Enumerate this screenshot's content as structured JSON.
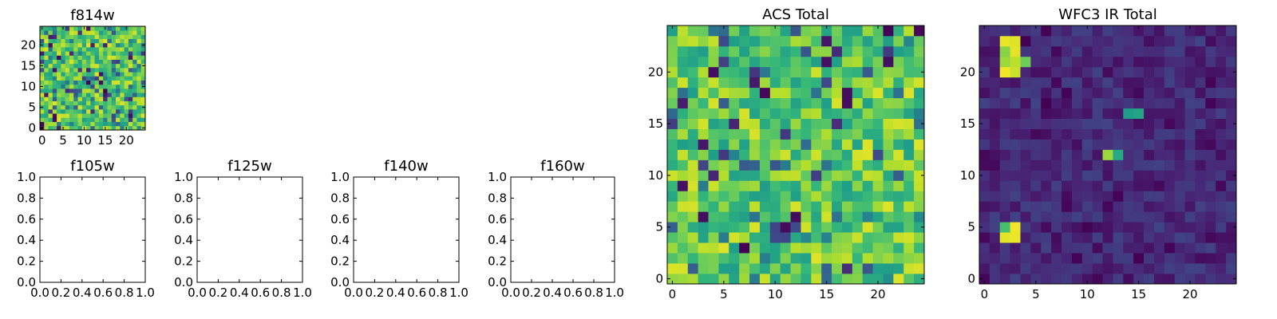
{
  "chart_data": [
    {
      "id": "f814w",
      "type": "heatmap",
      "title": "f814w",
      "grid_size": 25,
      "xlim": [
        -0.5,
        24.5
      ],
      "ylim": [
        -0.5,
        24.5
      ],
      "xticks": [
        0,
        5,
        10,
        15,
        20
      ],
      "yticks": [
        0,
        5,
        10,
        15,
        20
      ],
      "xticklabels": [
        "0",
        "5",
        "10",
        "15",
        "20"
      ],
      "yticklabels": [
        "0",
        "5",
        "10",
        "15",
        "20"
      ],
      "colormap": "viridis",
      "seed": 814,
      "base_low": 0.55,
      "base_high": 0.95,
      "dip_prob": 0.16,
      "dip_low": 0.0,
      "dip_high": 0.5,
      "hotspots": []
    },
    {
      "id": "f105w",
      "type": "heatmap",
      "title": "f105w",
      "empty": true,
      "xlim": [
        0,
        1
      ],
      "ylim": [
        0,
        1
      ],
      "xticklabels": [
        "0.0",
        "0.2",
        "0.4",
        "0.6",
        "0.8",
        "1.0"
      ],
      "yticklabels": [
        "0.0",
        "0.2",
        "0.4",
        "0.6",
        "0.8",
        "1.0"
      ]
    },
    {
      "id": "f125w",
      "type": "heatmap",
      "title": "f125w",
      "empty": true,
      "xlim": [
        0,
        1
      ],
      "ylim": [
        0,
        1
      ],
      "xticklabels": [
        "0.0",
        "0.2",
        "0.4",
        "0.6",
        "0.8",
        "1.0"
      ],
      "yticklabels": [
        "0.0",
        "0.2",
        "0.4",
        "0.6",
        "0.8",
        "1.0"
      ]
    },
    {
      "id": "f140w",
      "type": "heatmap",
      "title": "f140w",
      "empty": true,
      "xlim": [
        0,
        1
      ],
      "ylim": [
        0,
        1
      ],
      "xticklabels": [
        "0.0",
        "0.2",
        "0.4",
        "0.6",
        "0.8",
        "1.0"
      ],
      "yticklabels": [
        "0.0",
        "0.2",
        "0.4",
        "0.6",
        "0.8",
        "1.0"
      ]
    },
    {
      "id": "f160w",
      "type": "heatmap",
      "title": "f160w",
      "empty": true,
      "xlim": [
        0,
        1
      ],
      "ylim": [
        0,
        1
      ],
      "xticklabels": [
        "0.0",
        "0.2",
        "0.4",
        "0.6",
        "0.8",
        "1.0"
      ],
      "yticklabels": [
        "0.0",
        "0.2",
        "0.4",
        "0.6",
        "0.8",
        "1.0"
      ]
    },
    {
      "id": "acs_total",
      "type": "heatmap",
      "title": "ACS Total",
      "grid_size": 25,
      "xlim": [
        -0.5,
        24.5
      ],
      "ylim": [
        -0.5,
        24.5
      ],
      "xticks": [
        0,
        5,
        10,
        15,
        20
      ],
      "yticks": [
        0,
        5,
        10,
        15,
        20
      ],
      "xticklabels": [
        "0",
        "5",
        "10",
        "15",
        "20"
      ],
      "yticklabels": [
        "0",
        "5",
        "10",
        "15",
        "20"
      ],
      "colormap": "viridis",
      "seed": 1234,
      "base_low": 0.55,
      "base_high": 0.95,
      "dip_prob": 0.12,
      "dip_low": 0.0,
      "dip_high": 0.5,
      "hotspots": []
    },
    {
      "id": "wfc3_ir_total",
      "type": "heatmap",
      "title": "WFC3 IR Total",
      "grid_size": 25,
      "xlim": [
        -0.5,
        24.5
      ],
      "ylim": [
        -0.5,
        24.5
      ],
      "xticks": [
        0,
        5,
        10,
        15,
        20
      ],
      "yticks": [
        0,
        5,
        10,
        15,
        20
      ],
      "xticklabels": [
        "0",
        "5",
        "10",
        "15",
        "20"
      ],
      "yticklabels": [
        "0",
        "5",
        "10",
        "15",
        "20"
      ],
      "colormap": "viridis",
      "seed": 4242,
      "base_low": 0.04,
      "base_high": 0.2,
      "dip_prob": 0.06,
      "dip_low": 0.0,
      "dip_high": 0.04,
      "hotspots": [
        {
          "row": 23,
          "col": 2,
          "value": 0.97
        },
        {
          "row": 23,
          "col": 3,
          "value": 0.95
        },
        {
          "row": 22,
          "col": 2,
          "value": 0.82
        },
        {
          "row": 22,
          "col": 3,
          "value": 0.96
        },
        {
          "row": 21,
          "col": 2,
          "value": 0.85
        },
        {
          "row": 21,
          "col": 3,
          "value": 0.9
        },
        {
          "row": 21,
          "col": 4,
          "value": 0.78
        },
        {
          "row": 20,
          "col": 2,
          "value": 0.98
        },
        {
          "row": 20,
          "col": 3,
          "value": 0.92
        },
        {
          "row": 5,
          "col": 2,
          "value": 0.7
        },
        {
          "row": 5,
          "col": 3,
          "value": 0.98
        },
        {
          "row": 4,
          "col": 2,
          "value": 0.96
        },
        {
          "row": 4,
          "col": 3,
          "value": 0.97
        },
        {
          "row": 12,
          "col": 12,
          "value": 0.85
        },
        {
          "row": 12,
          "col": 13,
          "value": 0.6
        },
        {
          "row": 16,
          "col": 14,
          "value": 0.55
        },
        {
          "row": 16,
          "col": 15,
          "value": 0.58
        }
      ]
    }
  ]
}
